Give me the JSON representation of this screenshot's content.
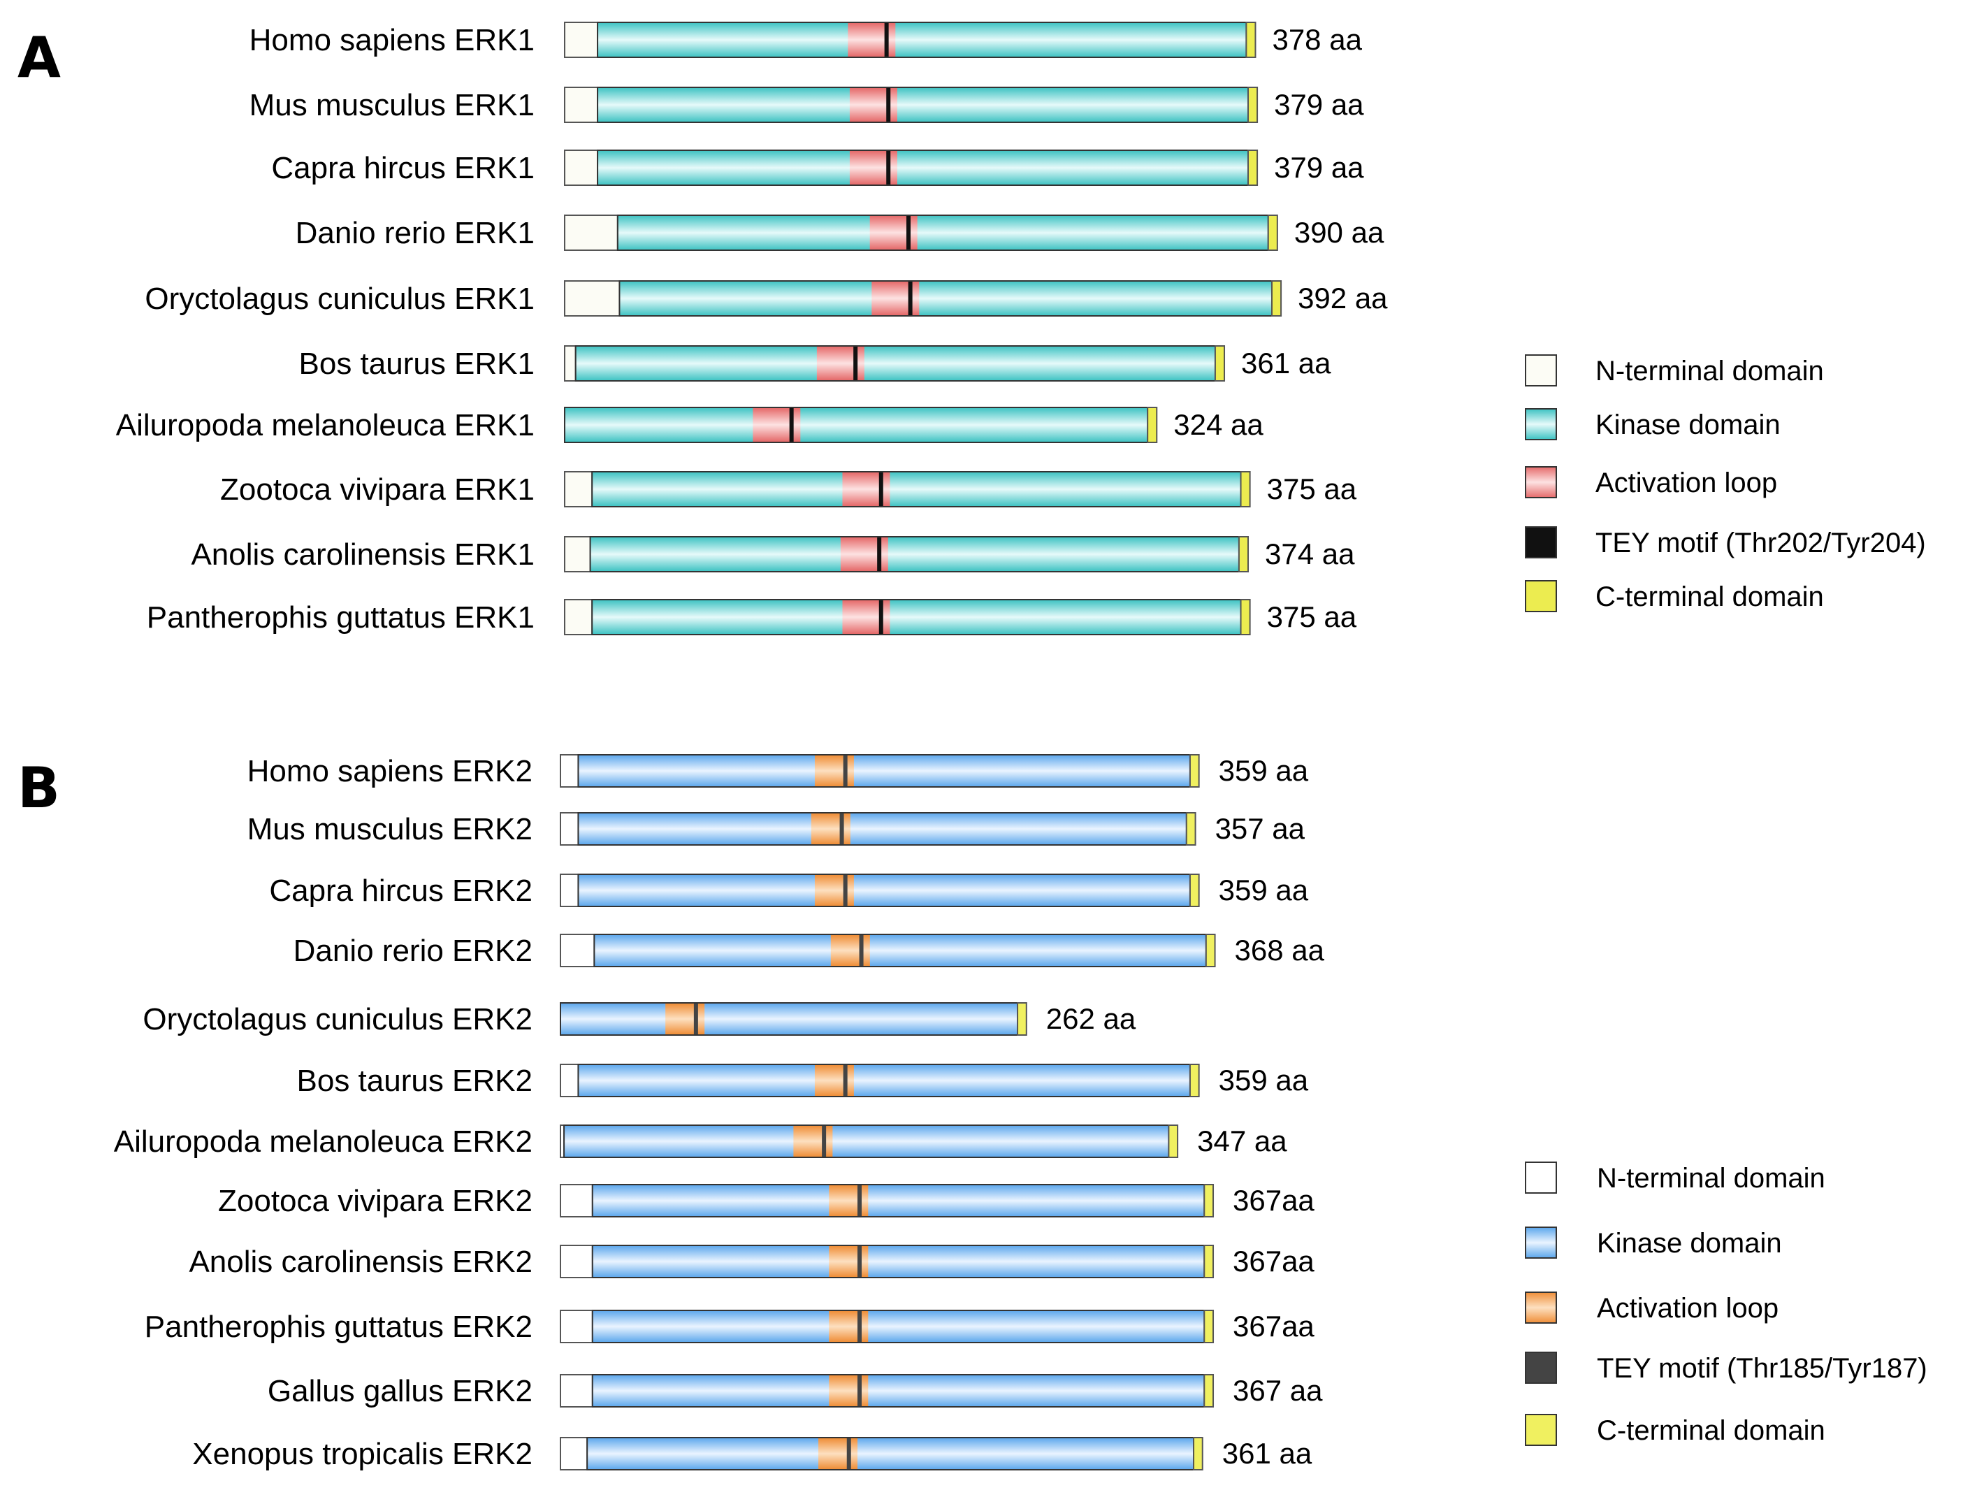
{
  "panels": [
    {
      "id": "A",
      "letter": "A",
      "colors": {
        "n_terminal": "#fcfcf5",
        "kinase_dark": "#3cc2c2",
        "kinase_light": "#e6fafa",
        "activation_dark": "#e56a6a",
        "activation_light": "#fde2e2",
        "tey": "#111111",
        "c_terminal": "#ecec50"
      },
      "proteins": [
        {
          "species": "Homo sapiens ERK1",
          "length_label": "378 aa",
          "length": 378,
          "n_terminal_end": 18,
          "activation_loop": [
            155,
            181
          ],
          "tey": [
            175,
            177
          ]
        },
        {
          "species": "Mus musculus ERK1",
          "length_label": "379 aa",
          "length": 379,
          "n_terminal_end": 18,
          "activation_loop": [
            156,
            182
          ],
          "tey": [
            176,
            178
          ]
        },
        {
          "species": "Capra hircus ERK1",
          "length_label": "379 aa",
          "length": 379,
          "n_terminal_end": 18,
          "activation_loop": [
            156,
            182
          ],
          "tey": [
            176,
            178
          ]
        },
        {
          "species": "Danio rerio ERK1",
          "length_label": "390 aa",
          "length": 390,
          "n_terminal_end": 29,
          "activation_loop": [
            167,
            193
          ],
          "tey": [
            187,
            189
          ]
        },
        {
          "species": "Oryctolagus cuniculus ERK1",
          "length_label": "392 aa",
          "length": 392,
          "n_terminal_end": 30,
          "activation_loop": [
            168,
            194
          ],
          "tey": [
            188,
            190
          ]
        },
        {
          "species": "Bos taurus ERK1",
          "length_label": "361 aa",
          "length": 361,
          "n_terminal_end": 6,
          "activation_loop": [
            138,
            164
          ],
          "tey": [
            158,
            160
          ]
        },
        {
          "species": "Ailuropoda melanoleuca ERK1",
          "length_label": "324 aa",
          "length": 324,
          "n_terminal_end": 0,
          "activation_loop": [
            103,
            129
          ],
          "tey": [
            123,
            125
          ]
        },
        {
          "species": "Zootoca vivipara ERK1",
          "length_label": "375 aa",
          "length": 375,
          "n_terminal_end": 15,
          "activation_loop": [
            152,
            178
          ],
          "tey": [
            172,
            174
          ]
        },
        {
          "species": "Anolis carolinensis ERK1",
          "length_label": "374 aa",
          "length": 374,
          "n_terminal_end": 14,
          "activation_loop": [
            151,
            177
          ],
          "tey": [
            171,
            173
          ]
        },
        {
          "species": "Pantherophis guttatus ERK1",
          "length_label": "375 aa",
          "length": 375,
          "n_terminal_end": 15,
          "activation_loop": [
            152,
            178
          ],
          "tey": [
            172,
            174
          ]
        }
      ],
      "legend": [
        {
          "key": "n_terminal",
          "label": "N-terminal domain"
        },
        {
          "key": "kinase",
          "label": "Kinase domain"
        },
        {
          "key": "activation",
          "label": "Activation loop"
        },
        {
          "key": "tey",
          "label": "TEY motif (Thr202/Tyr204)"
        },
        {
          "key": "c_terminal",
          "label": "C-terminal domain"
        }
      ]
    },
    {
      "id": "B",
      "letter": "B",
      "colors": {
        "n_terminal": "#ffffff",
        "kinase_dark": "#5aa6ec",
        "kinase_light": "#eaf4ff",
        "activation_dark": "#ef8e38",
        "activation_light": "#fde0c0",
        "tey": "#444444",
        "c_terminal": "#f0f060"
      },
      "proteins": [
        {
          "species": "Homo sapiens ERK2",
          "length_label": "359 aa",
          "length": 359,
          "n_terminal_end": 10,
          "activation_loop": [
            143,
            165
          ],
          "tey": [
            159,
            161
          ]
        },
        {
          "species": "Mus musculus ERK2",
          "length_label": "357 aa",
          "length": 357,
          "n_terminal_end": 10,
          "activation_loop": [
            141,
            163
          ],
          "tey": [
            157,
            159
          ]
        },
        {
          "species": "Capra hircus ERK2",
          "length_label": "359 aa",
          "length": 359,
          "n_terminal_end": 10,
          "activation_loop": [
            143,
            165
          ],
          "tey": [
            159,
            161
          ]
        },
        {
          "species": "Danio rerio ERK2",
          "length_label": "368 aa",
          "length": 368,
          "n_terminal_end": 19,
          "activation_loop": [
            152,
            174
          ],
          "tey": [
            168,
            170
          ]
        },
        {
          "species": "Oryctolagus cuniculus ERK2",
          "length_label": "262 aa",
          "length": 262,
          "n_terminal_end": 0,
          "activation_loop": [
            59,
            81
          ],
          "tey": [
            75,
            77
          ]
        },
        {
          "species": "Bos taurus ERK2",
          "length_label": "359 aa",
          "length": 359,
          "n_terminal_end": 10,
          "activation_loop": [
            143,
            165
          ],
          "tey": [
            159,
            161
          ]
        },
        {
          "species": "Ailuropoda melanoleuca ERK2",
          "length_label": "347 aa",
          "length": 347,
          "n_terminal_end": 2,
          "activation_loop": [
            131,
            153
          ],
          "tey": [
            147,
            149
          ]
        },
        {
          "species": "Zootoca vivipara ERK2",
          "length_label": "367aa",
          "length": 367,
          "n_terminal_end": 18,
          "activation_loop": [
            151,
            173
          ],
          "tey": [
            167,
            169
          ]
        },
        {
          "species": "Anolis carolinensis ERK2",
          "length_label": "367aa",
          "length": 367,
          "n_terminal_end": 18,
          "activation_loop": [
            151,
            173
          ],
          "tey": [
            167,
            169
          ]
        },
        {
          "species": "Pantherophis guttatus ERK2",
          "length_label": "367aa",
          "length": 367,
          "n_terminal_end": 18,
          "activation_loop": [
            151,
            173
          ],
          "tey": [
            167,
            169
          ]
        },
        {
          "species": "Gallus gallus ERK2",
          "length_label": "367 aa",
          "length": 367,
          "n_terminal_end": 18,
          "activation_loop": [
            151,
            173
          ],
          "tey": [
            167,
            169
          ]
        },
        {
          "species": "Xenopus tropicalis ERK2",
          "length_label": "361 aa",
          "length": 361,
          "n_terminal_end": 15,
          "activation_loop": [
            145,
            167
          ],
          "tey": [
            161,
            163
          ]
        }
      ],
      "legend": [
        {
          "key": "n_terminal",
          "label": "N-terminal domain"
        },
        {
          "key": "kinase",
          "label": "Kinase domain"
        },
        {
          "key": "activation",
          "label": "Activation loop"
        },
        {
          "key": "tey",
          "label": "TEY motif (Thr185/Tyr187)"
        },
        {
          "key": "c_terminal",
          "label": "C-terminal domain"
        }
      ]
    }
  ]
}
